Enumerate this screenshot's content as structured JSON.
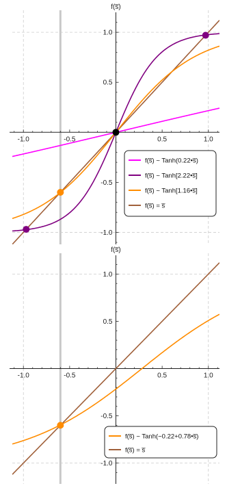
{
  "colors": {
    "magenta": "#ff00ff",
    "purple": "#800080",
    "orange": "#ff8c00",
    "brown": "#a0603a",
    "grid": "#cccccc",
    "highlight": "#c8c8c8",
    "fixed_point": "#000000"
  },
  "chart_data": [
    {
      "type": "line",
      "ylabel": "f(s̅)",
      "xlim": [
        -1.12,
        1.12
      ],
      "ylim": [
        -1.12,
        1.22
      ],
      "x_ticks": [
        -1.0,
        -0.5,
        0.5,
        1.0
      ],
      "x_tick_labels": [
        "-1.0",
        "-0.5",
        "0.5",
        "1.0"
      ],
      "y_ticks": [
        -1.0,
        -0.5,
        0.5,
        1.0
      ],
      "y_tick_labels": [
        "-1.0",
        "-0.5",
        "0.5",
        "1.0"
      ],
      "grid_lines": [
        -1.0,
        1.0
      ],
      "highlight_x": -0.6,
      "series": [
        {
          "name": "f(s̅) ~ Tanh(0.22•s̅)",
          "color": "#ff00ff",
          "function": "tanh",
          "gain": 0.22,
          "bias": 0.0
        },
        {
          "name": "f(s̅) ~ Tanh[2.22•s̅]",
          "color": "#800080",
          "function": "tanh",
          "gain": 2.22,
          "bias": 0.0
        },
        {
          "name": "f(s̅) ~ Tanh[1.16•s̅]",
          "color": "#ff8c00",
          "function": "tanh",
          "gain": 1.16,
          "bias": 0.0
        },
        {
          "name": "f(s̅) = s̅",
          "color": "#a0603a",
          "function": "identity"
        }
      ],
      "points": [
        {
          "x": 0.0,
          "y": 0.0,
          "color": "#000000"
        },
        {
          "x": 0.97,
          "y": 0.97,
          "color": "#800080"
        },
        {
          "x": -0.97,
          "y": -0.97,
          "color": "#800080"
        },
        {
          "x": -0.6,
          "y": -0.6,
          "color": "#ff8c00"
        }
      ],
      "legend_position": "lower-right"
    },
    {
      "type": "line",
      "ylabel": "f(s̅)",
      "xlim": [
        -1.12,
        1.12
      ],
      "ylim": [
        -1.22,
        1.22
      ],
      "x_ticks": [
        -1.0,
        -0.5,
        0.5,
        1.0
      ],
      "x_tick_labels": [
        "-1.0",
        "-0.5",
        "0.5",
        "1.0"
      ],
      "y_ticks": [
        -1.0,
        -0.5,
        0.5,
        1.0
      ],
      "y_tick_labels": [
        "-1.0",
        "-0.5",
        "0.5",
        "1.0"
      ],
      "grid_lines": [
        -1.0,
        1.0
      ],
      "highlight_x": -0.6,
      "series": [
        {
          "name": "f(s̅) ~ Tanh(−0.22+0.78•s̅)",
          "color": "#ff8c00",
          "function": "tanh",
          "gain": 0.78,
          "bias": -0.22
        },
        {
          "name": "f(s̅) = s̅",
          "color": "#a0603a",
          "function": "identity"
        }
      ],
      "points": [
        {
          "x": -0.6,
          "y": -0.6,
          "color": "#ff8c00"
        }
      ],
      "legend_position": "lower-right"
    }
  ]
}
